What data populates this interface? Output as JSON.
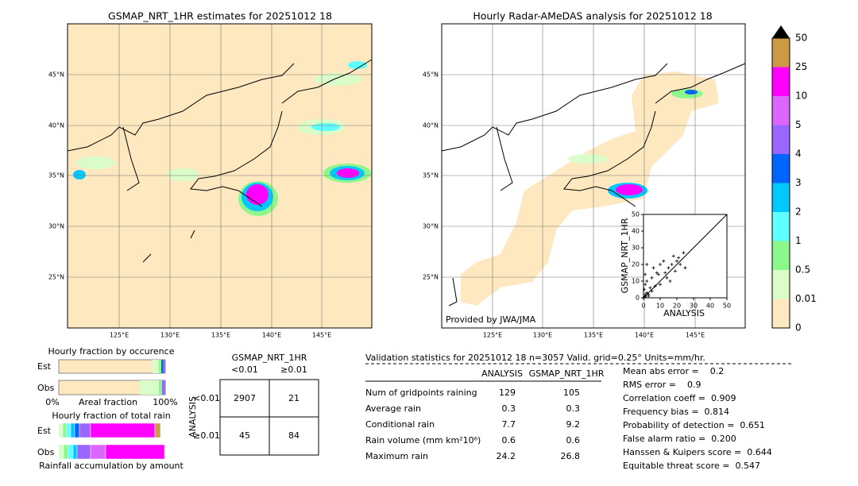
{
  "left_map": {
    "title": "GSMAP_NRT_1HR estimates for 20251012 18",
    "lat_labels": [
      "45°N",
      "40°N",
      "35°N",
      "30°N",
      "25°N"
    ],
    "lon_labels": [
      "125°E",
      "130°E",
      "135°E",
      "140°E",
      "145°E"
    ]
  },
  "right_map": {
    "title": "Hourly Radar-AMeDAS analysis for 20251012 18",
    "lat_labels": [
      "45°N",
      "40°N",
      "35°N",
      "30°N",
      "25°N"
    ],
    "lon_labels": [
      "125°E",
      "130°E",
      "135°E",
      "140°E",
      "145°E"
    ],
    "credit": "Provided by JWA/JMA"
  },
  "colorbar": {
    "labels": [
      "0",
      "0.01",
      "0.5",
      "1",
      "2",
      "3",
      "4",
      "5",
      "10",
      "25",
      "50"
    ],
    "colors": [
      "#fde8c0",
      "#d9fcc8",
      "#8cf88c",
      "#5fffff",
      "#00c8ff",
      "#0064ff",
      "#9966ff",
      "#dd66ff",
      "#ff00ff",
      "#cc9944"
    ]
  },
  "scatter": {
    "x_label": "ANALYSIS",
    "y_label": "GSMAP_NRT_1HR",
    "xlim": [
      0,
      50
    ],
    "ylim": [
      0,
      50
    ],
    "xticks": [
      0,
      10,
      20,
      30,
      40,
      50
    ],
    "yticks": [
      0,
      10,
      20,
      30,
      40,
      50
    ],
    "x": [
      0.5,
      1,
      1.5,
      2,
      3,
      0.5,
      1,
      2,
      4,
      5,
      6,
      8,
      10,
      12,
      15,
      18,
      20,
      22,
      24,
      14,
      16,
      10,
      5,
      3,
      7,
      9,
      13,
      17,
      19,
      21,
      25,
      2,
      1
    ],
    "y": [
      0.5,
      2,
      1,
      3,
      1,
      5,
      8,
      10,
      6,
      12,
      18,
      15,
      20,
      22,
      18,
      25,
      22,
      20,
      27,
      12,
      10,
      8,
      4,
      2,
      7,
      14,
      15,
      20,
      16,
      24,
      18,
      20,
      14
    ]
  },
  "fraction": {
    "occurrence_title": "Hourly fraction by occurence",
    "est": "Est",
    "obs": "Obs",
    "axis_labels": [
      "0%",
      "Areal fraction",
      "100%"
    ],
    "total_title": "Hourly fraction of total rain",
    "footer": "Rainfall accumulation by amount"
  },
  "contingency": {
    "title": "GSMAP_NRT_1HR",
    "col_labels": [
      "<0.01",
      "≥0.01"
    ],
    "row_title": "ANALYSIS",
    "row_labels": [
      "<0.01",
      "≥0.01"
    ],
    "cells": [
      [
        2907,
        21
      ],
      [
        45,
        84
      ]
    ]
  },
  "validation": {
    "header": "Validation statistics for 20251012 18  n=3057 Valid. grid=0.25° Units=mm/hr.",
    "columns": [
      "ANALYSIS",
      "GSMAP_NRT_1HR"
    ],
    "rows": [
      [
        "Num of gridpoints raining",
        129,
        105
      ],
      [
        "Average rain",
        0.3,
        0.3
      ],
      [
        "Conditional rain",
        7.7,
        9.2
      ],
      [
        "Rain volume (mm km²10⁶)",
        0.6,
        0.6
      ],
      [
        "Maximum rain",
        24.2,
        26.8
      ]
    ],
    "scores": [
      "Mean abs error =    0.2",
      "RMS error =    0.9",
      "Correlation coeff =  0.909",
      "Frequency bias =  0.814",
      "Probability of detection =  0.651",
      "False alarm ratio =  0.200",
      "Hanssen & Kuipers score =  0.644",
      "Equitable threat score =  0.547"
    ]
  }
}
